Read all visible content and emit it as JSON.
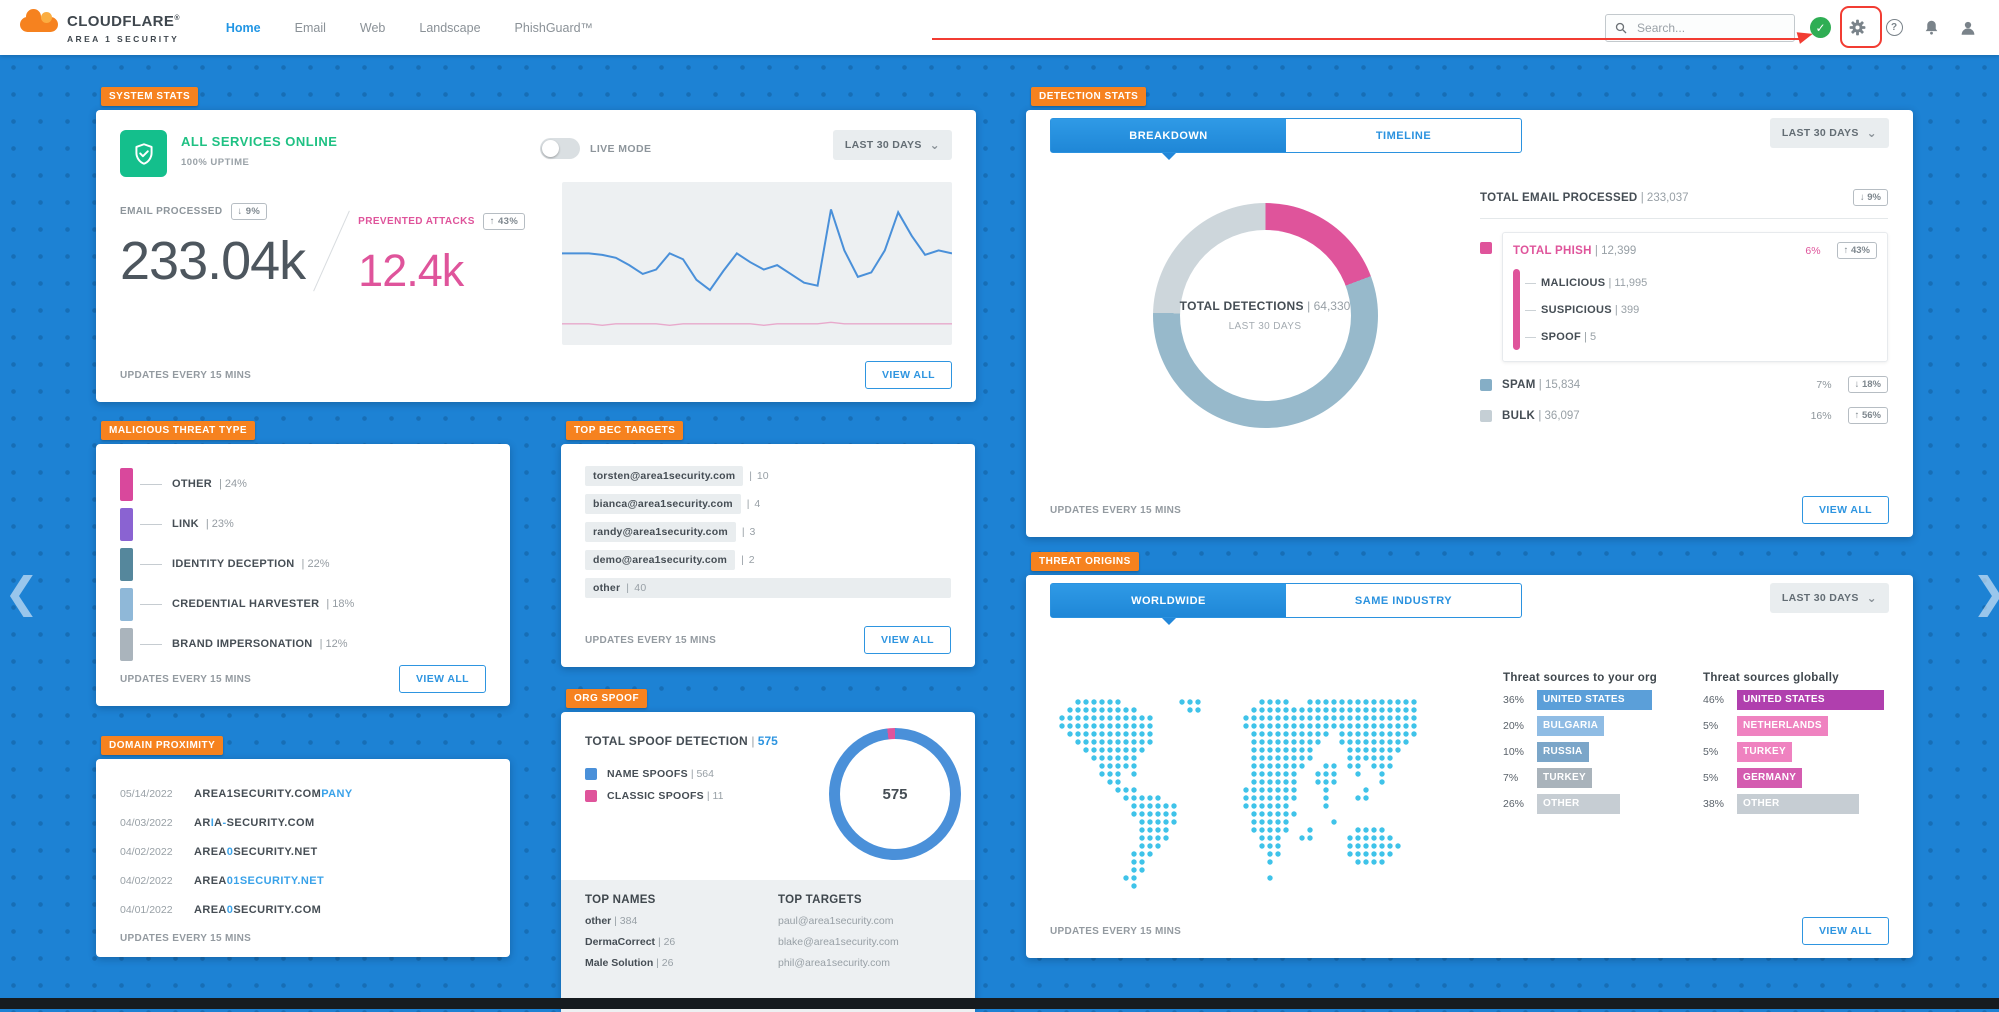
{
  "icons": {
    "chevron_left": "❮",
    "chevron_right": "❯",
    "chevron_down": "⌄",
    "arrow_up": "↑",
    "arrow_down": "↓",
    "check": "✓",
    "question": "?"
  },
  "topbar": {
    "brand_name": "CLOUDFLARE",
    "brand_reg": "®",
    "brand_sub": "AREA 1 SECURITY",
    "nav": [
      {
        "label": "Home",
        "active": true
      },
      {
        "label": "Email",
        "active": false
      },
      {
        "label": "Web",
        "active": false
      },
      {
        "label": "Landscape",
        "active": false
      },
      {
        "label": "PhishGuard™",
        "active": false
      }
    ],
    "search_placeholder": "Search..."
  },
  "common": {
    "updates": "UPDATES EVERY 15 MINS",
    "view_all": "VIEW ALL",
    "range": "LAST 30 DAYS"
  },
  "system_stats": {
    "tag": "SYSTEM STATS",
    "status": "ALL SERVICES ONLINE",
    "uptime": "100% UPTIME",
    "live_mode": "LIVE MODE",
    "email": {
      "label": "EMAIL PROCESSED",
      "badge": {
        "dir": "down",
        "text": "9%"
      },
      "value": "233.04k"
    },
    "prevented": {
      "label": "PREVENTED ATTACKS",
      "badge": {
        "dir": "up",
        "text": "43%"
      },
      "value": "12.4k"
    }
  },
  "malicious_threat_type": {
    "tag": "MALICIOUS THREAT TYPE",
    "rows": [
      {
        "label": "OTHER",
        "pct": "24%",
        "color": "#d9489c"
      },
      {
        "label": "LINK",
        "pct": "23%",
        "color": "#8a63d2"
      },
      {
        "label": "IDENTITY DECEPTION",
        "pct": "22%",
        "color": "#55879c"
      },
      {
        "label": "CREDENTIAL HARVESTER",
        "pct": "18%",
        "color": "#8fb8d8"
      },
      {
        "label": "BRAND IMPERSONATION",
        "pct": "12%",
        "color": "#aab4bc"
      }
    ]
  },
  "domain_proximity": {
    "tag": "DOMAIN PROXIMITY",
    "rows": [
      {
        "date": "05/14/2022",
        "parts": [
          {
            "t": "AREA1SECURITY.COM",
            "hl": false
          },
          {
            "t": "PANY",
            "hl": true
          }
        ]
      },
      {
        "date": "04/03/2022",
        "parts": [
          {
            "t": "AR",
            "hl": false
          },
          {
            "t": "I",
            "hl": true
          },
          {
            "t": "A",
            "hl": false
          },
          {
            "t": "-",
            "hl": true
          },
          {
            "t": "SECURITY.COM",
            "hl": false
          }
        ]
      },
      {
        "date": "04/02/2022",
        "parts": [
          {
            "t": "AREA",
            "hl": false
          },
          {
            "t": "0",
            "hl": true
          },
          {
            "t": "SECURITY.NET",
            "hl": false
          }
        ]
      },
      {
        "date": "04/02/2022",
        "parts": [
          {
            "t": "AREA",
            "hl": false
          },
          {
            "t": "01SECURITY.NET",
            "hl": true
          }
        ]
      },
      {
        "date": "04/01/2022",
        "parts": [
          {
            "t": "AREA",
            "hl": false
          },
          {
            "t": "0",
            "hl": true
          },
          {
            "t": "SECURITY.COM",
            "hl": false
          }
        ]
      }
    ]
  },
  "top_bec_targets": {
    "tag": "TOP BEC TARGETS",
    "rows": [
      {
        "label": "torsten@area1security.com",
        "value": "10",
        "wide": false
      },
      {
        "label": "bianca@area1security.com",
        "value": "4",
        "wide": false
      },
      {
        "label": "randy@area1security.com",
        "value": "3",
        "wide": false
      },
      {
        "label": "demo@area1security.com",
        "value": "2",
        "wide": false
      },
      {
        "label": "other",
        "value": "40",
        "wide": true
      }
    ]
  },
  "org_spoof": {
    "tag": "ORG SPOOF",
    "title_label": "TOTAL SPOOF DETECTION",
    "title_value": "575",
    "legend": [
      {
        "label": "NAME SPOOFS",
        "value": "564",
        "color": "#4a90d9"
      },
      {
        "label": "CLASSIC SPOOFS",
        "value": "11",
        "color": "#df549b"
      }
    ],
    "donut_center": "575",
    "top_names_header": "TOP NAMES",
    "top_targets_header": "TOP TARGETS",
    "top_names": [
      {
        "name": "other",
        "value": "384"
      },
      {
        "name": "DermaCorrect",
        "value": "26"
      },
      {
        "name": "Male Solution",
        "value": "26"
      }
    ],
    "top_targets": [
      "paul@area1security.com",
      "blake@area1security.com",
      "phil@area1security.com"
    ]
  },
  "detection_stats": {
    "tag": "DETECTION STATS",
    "tabs": [
      {
        "label": "BREAKDOWN",
        "active": true
      },
      {
        "label": "TIMELINE",
        "active": false
      }
    ],
    "donut": {
      "center_label": "TOTAL DETECTIONS",
      "center_value": "64,330",
      "center_sub": "LAST 30 DAYS"
    },
    "header_row": {
      "label": "TOTAL EMAIL PROCESSED",
      "value": "233,037",
      "badge": {
        "dir": "down",
        "text": "9%"
      }
    },
    "phish": {
      "label": "TOTAL PHISH",
      "value": "12,399",
      "pct": "6%",
      "badge": {
        "dir": "up",
        "text": "43%"
      },
      "color": "#df549b"
    },
    "sub_rows": [
      {
        "label": "MALICIOUS",
        "value": "11,995"
      },
      {
        "label": "SUSPICIOUS",
        "value": "399"
      },
      {
        "label": "SPOOF",
        "value": "5"
      }
    ],
    "spam": {
      "label": "SPAM",
      "value": "15,834",
      "pct": "7%",
      "badge": {
        "dir": "down",
        "text": "18%"
      },
      "color": "#85aec6"
    },
    "bulk": {
      "label": "BULK",
      "value": "36,097",
      "pct": "16%",
      "badge": {
        "dir": "up",
        "text": "56%"
      },
      "color": "#c5cfd5"
    }
  },
  "threat_origins": {
    "tag": "THREAT ORIGINS",
    "tabs": [
      {
        "label": "WORLDWIDE",
        "active": true
      },
      {
        "label": "SAME INDUSTRY",
        "active": false
      }
    ],
    "cols": [
      {
        "header": "Threat sources to your org",
        "rows": [
          {
            "pct": "36%",
            "pct_num": 36,
            "label": "UNITED STATES",
            "color": "#5b9fd9"
          },
          {
            "pct": "20%",
            "pct_num": 20,
            "label": "BULGARIA",
            "color": "#8fbce4"
          },
          {
            "pct": "10%",
            "pct_num": 10,
            "label": "RUSSIA",
            "color": "#7ba6c9"
          },
          {
            "pct": "7%",
            "pct_num": 7,
            "label": "TURKEY",
            "color": "#a9b3bb"
          },
          {
            "pct": "26%",
            "pct_num": 26,
            "label": "OTHER",
            "color": "#c6cdd3"
          }
        ]
      },
      {
        "header": "Threat sources globally",
        "rows": [
          {
            "pct": "46%",
            "pct_num": 46,
            "label": "UNITED STATES",
            "color": "#b03fae"
          },
          {
            "pct": "5%",
            "pct_num": 5,
            "label": "NETHERLANDS",
            "color": "#ef82c0"
          },
          {
            "pct": "5%",
            "pct_num": 5,
            "label": "TURKEY",
            "color": "#ef82c0"
          },
          {
            "pct": "5%",
            "pct_num": 5,
            "label": "GERMANY",
            "color": "#d45cb0"
          },
          {
            "pct": "38%",
            "pct_num": 38,
            "label": "OTHER",
            "color": "#c6cdd3"
          }
        ]
      }
    ]
  },
  "chart_data": [
    {
      "type": "line",
      "title": "System activity sparkline",
      "grid": false,
      "legend_position": "none",
      "x": "last 30 days",
      "series": [
        {
          "name": "EMAIL PROCESSED",
          "color": "#4a90d9",
          "values": [
            58,
            58,
            58,
            57,
            55,
            50,
            44,
            47,
            58,
            54,
            40,
            33,
            46,
            58,
            52,
            47,
            50,
            44,
            38,
            36,
            88,
            60,
            42,
            45,
            60,
            86,
            70,
            57,
            60,
            58
          ]
        },
        {
          "name": "PREVENTED ATTACKS",
          "color": "#e8a9cc",
          "values": [
            10,
            10,
            10,
            9,
            10,
            10,
            10,
            10,
            9,
            10,
            10,
            10,
            10,
            10,
            10,
            9,
            10,
            10,
            10,
            10,
            11,
            10,
            10,
            10,
            10,
            10,
            10,
            10,
            10,
            10
          ]
        }
      ]
    },
    {
      "type": "pie",
      "title": "Detection breakdown donut",
      "center": {
        "label": "TOTAL DETECTIONS",
        "value": 64330,
        "sub": "LAST 30 DAYS"
      },
      "slices": [
        {
          "label": "TOTAL PHISH",
          "value": 12399,
          "pct": 19.3,
          "color": "#df549b"
        },
        {
          "label": "BULK",
          "value": 36097,
          "pct": 56.1,
          "color": "#97b9cb"
        },
        {
          "label": "SPAM",
          "value": 15834,
          "pct": 24.6,
          "color": "#cdd6db"
        }
      ]
    },
    {
      "type": "pie",
      "title": "Org spoof donut",
      "center": {
        "value": 575
      },
      "slices": [
        {
          "label": "NAME SPOOFS",
          "value": 564,
          "pct": 98.1,
          "color": "#4a90d9"
        },
        {
          "label": "CLASSIC SPOOFS",
          "value": 11,
          "pct": 1.9,
          "color": "#df549b"
        }
      ]
    },
    {
      "type": "bar",
      "title": "Threat sources to your org",
      "categories": [
        "UNITED STATES",
        "BULGARIA",
        "RUSSIA",
        "TURKEY",
        "OTHER"
      ],
      "values": [
        36,
        20,
        10,
        7,
        26
      ],
      "unit": "%"
    },
    {
      "type": "bar",
      "title": "Threat sources globally",
      "categories": [
        "UNITED STATES",
        "NETHERLANDS",
        "TURKEY",
        "GERMANY",
        "OTHER"
      ],
      "values": [
        46,
        5,
        5,
        5,
        38
      ],
      "unit": "%"
    }
  ]
}
